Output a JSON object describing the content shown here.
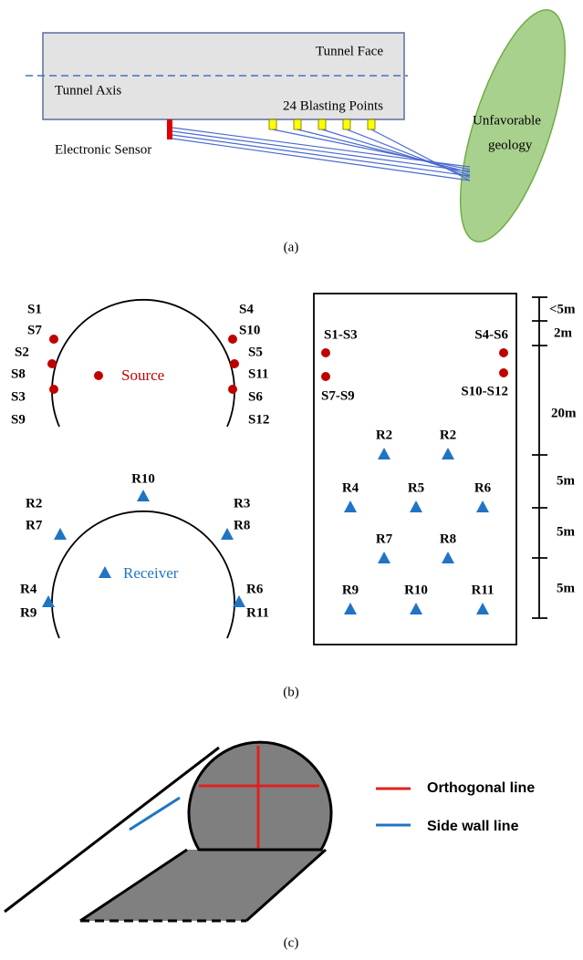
{
  "panel_a": {
    "tunnel_face": "Tunnel Face",
    "tunnel_axis": "Tunnel Axis",
    "blasting_points": "24 Blasting Points",
    "sensor": "Electronic Sensor",
    "geology": [
      "Unfavorable",
      "geology"
    ],
    "caption": "(a)"
  },
  "panel_b": {
    "source_section": {
      "left_labels": [
        "S1",
        "S7",
        "S2",
        "S8",
        "S3",
        "S9"
      ],
      "right_labels": [
        "S4",
        "S10",
        "S5",
        "S11",
        "S6",
        "S12"
      ],
      "legend": "Source"
    },
    "receiver_section": {
      "top_label": "R10",
      "left_labels": [
        "R2",
        "R7",
        "R4",
        "R9"
      ],
      "right_labels": [
        "R3",
        "R8",
        "R6",
        "R11"
      ],
      "legend": "Receiver"
    },
    "plan": {
      "sources": [
        "S1-S3",
        "S7-S9",
        "S4-S6",
        "S10-S12"
      ],
      "receivers": [
        "R2",
        "R2",
        "R4",
        "R5",
        "R6",
        "R7",
        "R8",
        "R9",
        "R10",
        "R11"
      ],
      "scale": [
        "<5m",
        "2m",
        "20m",
        "5m",
        "5m",
        "5m"
      ]
    },
    "caption": "(b)"
  },
  "panel_c": {
    "legend": [
      "Orthogonal line",
      "Side wall line"
    ],
    "caption": "(c)"
  }
}
